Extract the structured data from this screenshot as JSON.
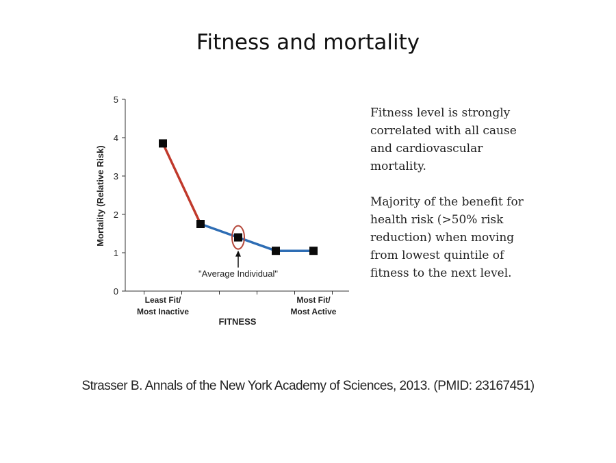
{
  "slide": {
    "title": "Fitness and mortality",
    "notes": [
      "Fitness level is strongly correlated with all cause and cardiovascular mortality.",
      "Majority of the benefit for health risk (>50% risk reduction) when moving from lowest quintile of fitness to the next level."
    ],
    "citation": "Strasser B. Annals of the New York Academy of Sciences, 2013. (PMID: 23167451)"
  },
  "chart_data": {
    "type": "line",
    "title": "",
    "xlabel": "FITNESS",
    "ylabel": "Mortality (Relative Risk)",
    "ylim": [
      0,
      5
    ],
    "yticks": [
      0,
      1,
      2,
      3,
      4,
      5
    ],
    "x": [
      1,
      2,
      3,
      4,
      5
    ],
    "values": [
      3.85,
      1.75,
      1.4,
      1.05,
      1.05
    ],
    "x_tick_labels": [
      {
        "x": 1,
        "lines": [
          "Least Fit/",
          "Most Inactive"
        ]
      },
      {
        "x": 5,
        "lines": [
          "Most Fit/",
          "Most Active"
        ]
      }
    ],
    "segment_colors": [
      "#c0392b",
      "#2e6db4",
      "#2e6db4",
      "#2e6db4"
    ],
    "highlight": {
      "x": 3,
      "circle_color": "#b5473a"
    },
    "annotation": {
      "text": "\"Average Individual\"",
      "x": 3
    },
    "grid": false,
    "legend": "none"
  }
}
